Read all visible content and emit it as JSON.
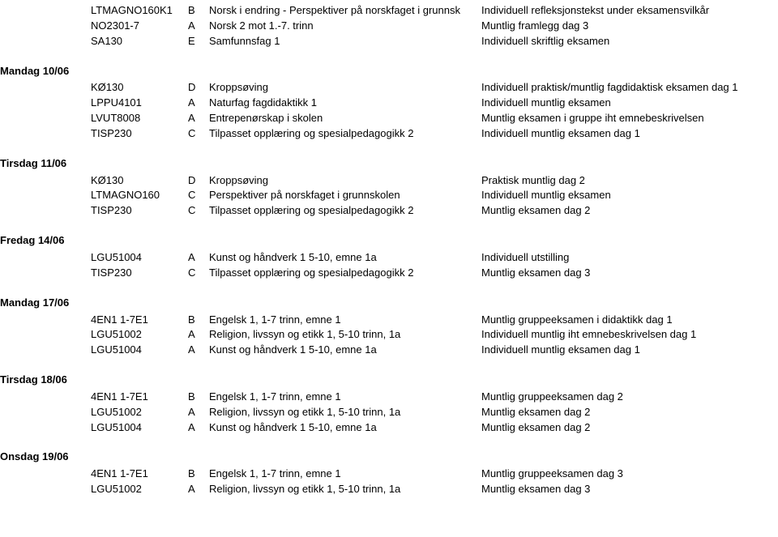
{
  "top_rows": [
    {
      "code": "LTMAGNO160K1",
      "letter": "B",
      "course": "Norsk i endring - Perspektiver på norskfaget i grunnsk",
      "desc": "Individuell refleksjonstekst under eksamensvilkår"
    },
    {
      "code": "NO2301-7",
      "letter": "A",
      "course": "Norsk 2 mot 1.-7. trinn",
      "desc": "Muntlig framlegg dag 3"
    },
    {
      "code": "SA130",
      "letter": "E",
      "course": "Samfunnsfag 1",
      "desc": "Individuell skriftlig eksamen"
    }
  ],
  "sections": [
    {
      "label": "Mandag 10/06",
      "rows": [
        {
          "code": "KØ130",
          "letter": "D",
          "course": "Kroppsøving",
          "desc": "Individuell praktisk/muntlig fagdidaktisk eksamen dag 1"
        },
        {
          "code": "LPPU4101",
          "letter": "A",
          "course": "Naturfag fagdidaktikk 1",
          "desc": "Individuell muntlig eksamen"
        },
        {
          "code": "LVUT8008",
          "letter": "A",
          "course": "Entrepenørskap i skolen",
          "desc": "Muntlig eksamen i gruppe iht emnebeskrivelsen"
        },
        {
          "code": "TISP230",
          "letter": "C",
          "course": "Tilpasset opplæring og spesialpedagogikk 2",
          "desc": "Individuell muntlig eksamen dag 1"
        }
      ]
    },
    {
      "label": "Tirsdag 11/06",
      "rows": [
        {
          "code": "KØ130",
          "letter": "D",
          "course": "Kroppsøving",
          "desc": "Praktisk muntlig dag 2"
        },
        {
          "code": "LTMAGNO160",
          "letter": "C",
          "course": "Perspektiver på norskfaget i grunnskolen",
          "desc": "Individuell muntlig eksamen"
        },
        {
          "code": "TISP230",
          "letter": "C",
          "course": "Tilpasset opplæring og spesialpedagogikk 2",
          "desc": "Muntlig eksamen dag 2"
        }
      ]
    },
    {
      "label": "Fredag 14/06",
      "rows": [
        {
          "code": "LGU51004",
          "letter": "A",
          "course": "Kunst og håndverk 1 5-10, emne 1a",
          "desc": "Individuell utstilling"
        },
        {
          "code": "TISP230",
          "letter": "C",
          "course": "Tilpasset opplæring og spesialpedagogikk 2",
          "desc": "Muntlig eksamen dag 3"
        }
      ]
    },
    {
      "label": "Mandag 17/06",
      "rows": [
        {
          "code": "4EN1 1-7E1",
          "letter": "B",
          "course": "Engelsk 1, 1-7 trinn, emne 1",
          "desc": "Muntlig gruppeeksamen i didaktikk dag 1"
        },
        {
          "code": "LGU51002",
          "letter": "A",
          "course": "Religion, livssyn og etikk 1, 5-10 trinn, 1a",
          "desc": "Individuell muntlig iht emnebeskrivelsen dag 1"
        },
        {
          "code": "LGU51004",
          "letter": "A",
          "course": "Kunst og håndverk 1 5-10, emne 1a",
          "desc": "Individuell muntlig eksamen dag 1"
        }
      ]
    },
    {
      "label": "Tirsdag 18/06",
      "rows": [
        {
          "code": "4EN1 1-7E1",
          "letter": "B",
          "course": "Engelsk 1, 1-7 trinn, emne 1",
          "desc": "Muntlig gruppeeksamen dag 2"
        },
        {
          "code": "LGU51002",
          "letter": "A",
          "course": "Religion, livssyn og etikk 1, 5-10 trinn, 1a",
          "desc": "Muntlig eksamen dag 2"
        },
        {
          "code": "LGU51004",
          "letter": "A",
          "course": "Kunst og håndverk 1 5-10, emne 1a",
          "desc": "Muntlig eksamen dag 2"
        }
      ]
    },
    {
      "label": "Onsdag 19/06",
      "rows": [
        {
          "code": "4EN1 1-7E1",
          "letter": "B",
          "course": "Engelsk 1, 1-7 trinn, emne 1",
          "desc": "Muntlig gruppeeksamen dag 3"
        },
        {
          "code": "LGU51002",
          "letter": "A",
          "course": "Religion, livssyn og etikk 1, 5-10 trinn, 1a",
          "desc": "Muntlig eksamen dag 3"
        }
      ]
    }
  ]
}
